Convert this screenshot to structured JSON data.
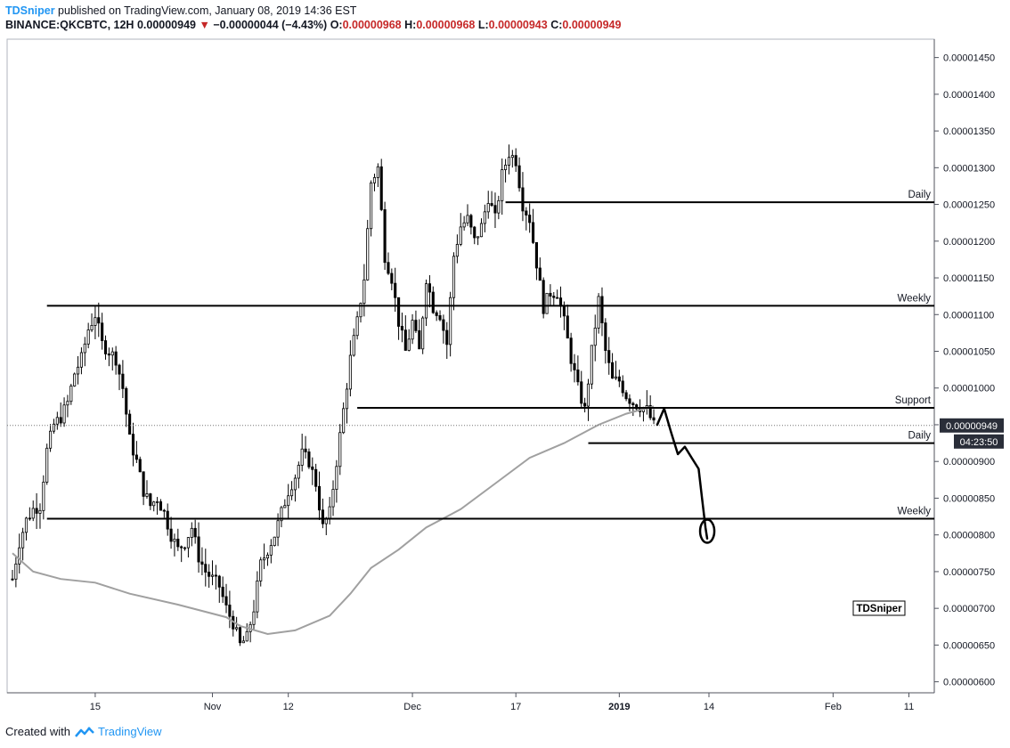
{
  "header": {
    "author": "TDSniper",
    "published_text": " published on TradingView.com, January 08, 2019 14:36 EST",
    "symbol": "BINANCE:QKCBTC, 12H",
    "last": "0.00000949",
    "change": "−0.00000044 (−4.43%)",
    "o_label": "O:",
    "o_value": "0.00000968",
    "h_label": "H:",
    "h_value": "0.00000968",
    "l_label": "L:",
    "l_value": "0.00000943",
    "c_label": "C:",
    "c_value": "0.00000949"
  },
  "footer": {
    "created_with": "Created with",
    "brand": "TradingView"
  },
  "colors": {
    "candle": "#000000",
    "ma": "#a0a0a0",
    "level": "#000000",
    "drawing": "#000000",
    "brand": "#2196f3",
    "down": "#c62828"
  },
  "chart_data": {
    "type": "candlestick",
    "timeframe": "12H",
    "y_unit": "BTC",
    "y_ticks": [
      "0.00001450",
      "0.00001400",
      "0.00001350",
      "0.00001300",
      "0.00001250",
      "0.00001200",
      "0.00001150",
      "0.00001100",
      "0.00001050",
      "0.00001000",
      "0.00000950",
      "0.00000900",
      "0.00000850",
      "0.00000800",
      "0.00000750",
      "0.00000700",
      "0.00000650",
      "0.00000600"
    ],
    "y_tick_values": [
      1450,
      1400,
      1350,
      1300,
      1250,
      1200,
      1150,
      1100,
      1050,
      1000,
      950,
      900,
      850,
      800,
      750,
      700,
      650,
      600
    ],
    "ylim": [
      585,
      1475
    ],
    "x_ticks": [
      {
        "label": "15",
        "bar": 24
      },
      {
        "label": "Nov",
        "bar": 58
      },
      {
        "label": "12",
        "bar": 80
      },
      {
        "label": "Dec",
        "bar": 116
      },
      {
        "label": "17",
        "bar": 146
      },
      {
        "label": "2019",
        "bar": 176,
        "bold": true
      },
      {
        "label": "14",
        "bar": 202
      },
      {
        "label": "Feb",
        "bar": 238
      },
      {
        "label": "11",
        "bar": 260
      }
    ],
    "current_price": {
      "label": "0.00000949",
      "value": 949
    },
    "countdown": "04:23:50",
    "levels": [
      {
        "label": "Daily",
        "value": 1253,
        "from_bar": 143
      },
      {
        "label": "Weekly",
        "value": 1112,
        "from_bar": 10
      },
      {
        "label": "Support",
        "value": 973,
        "from_bar": 100
      },
      {
        "label": "Daily",
        "value": 925,
        "from_bar": 167
      },
      {
        "label": "Weekly",
        "value": 822,
        "from_bar": 10
      }
    ],
    "watermark": "TDSniper",
    "close_path": [
      [
        0,
        740
      ],
      [
        2,
        790
      ],
      [
        4,
        820
      ],
      [
        6,
        835
      ],
      [
        8,
        840
      ],
      [
        10,
        915
      ],
      [
        12,
        950
      ],
      [
        14,
        960
      ],
      [
        16,
        980
      ],
      [
        18,
        1020
      ],
      [
        20,
        1040
      ],
      [
        22,
        1080
      ],
      [
        24,
        1100
      ],
      [
        26,
        1060
      ],
      [
        28,
        1050
      ],
      [
        30,
        1040
      ],
      [
        32,
        1000
      ],
      [
        34,
        930
      ],
      [
        36,
        900
      ],
      [
        38,
        860
      ],
      [
        40,
        840
      ],
      [
        42,
        850
      ],
      [
        44,
        830
      ],
      [
        46,
        800
      ],
      [
        48,
        780
      ],
      [
        50,
        790
      ],
      [
        52,
        810
      ],
      [
        54,
        770
      ],
      [
        56,
        750
      ],
      [
        58,
        740
      ],
      [
        60,
        730
      ],
      [
        62,
        700
      ],
      [
        64,
        680
      ],
      [
        66,
        650
      ],
      [
        68,
        660
      ],
      [
        70,
        700
      ],
      [
        72,
        760
      ],
      [
        74,
        780
      ],
      [
        76,
        800
      ],
      [
        78,
        830
      ],
      [
        80,
        860
      ],
      [
        82,
        880
      ],
      [
        84,
        910
      ],
      [
        86,
        900
      ],
      [
        88,
        870
      ],
      [
        90,
        810
      ],
      [
        92,
        830
      ],
      [
        94,
        900
      ],
      [
        96,
        970
      ],
      [
        98,
        1040
      ],
      [
        100,
        1090
      ],
      [
        102,
        1150
      ],
      [
        104,
        1280
      ],
      [
        106,
        1300
      ],
      [
        108,
        1180
      ],
      [
        110,
        1150
      ],
      [
        112,
        1090
      ],
      [
        114,
        1050
      ],
      [
        116,
        1090
      ],
      [
        118,
        1050
      ],
      [
        120,
        1150
      ],
      [
        122,
        1110
      ],
      [
        124,
        1100
      ],
      [
        126,
        1060
      ],
      [
        128,
        1180
      ],
      [
        130,
        1220
      ],
      [
        132,
        1230
      ],
      [
        134,
        1200
      ],
      [
        136,
        1220
      ],
      [
        138,
        1260
      ],
      [
        140,
        1230
      ],
      [
        142,
        1290
      ],
      [
        144,
        1320
      ],
      [
        146,
        1310
      ],
      [
        148,
        1250
      ],
      [
        150,
        1230
      ],
      [
        152,
        1170
      ],
      [
        154,
        1110
      ],
      [
        156,
        1130
      ],
      [
        158,
        1130
      ],
      [
        160,
        1090
      ],
      [
        162,
        1040
      ],
      [
        164,
        1000
      ],
      [
        166,
        970
      ],
      [
        168,
        1050
      ],
      [
        170,
        1120
      ],
      [
        172,
        1050
      ],
      [
        174,
        1010
      ],
      [
        176,
        1010
      ],
      [
        178,
        990
      ],
      [
        180,
        980
      ],
      [
        182,
        975
      ],
      [
        184,
        970
      ],
      [
        186,
        949
      ]
    ],
    "ma_path": [
      [
        0,
        775
      ],
      [
        6,
        750
      ],
      [
        14,
        740
      ],
      [
        24,
        735
      ],
      [
        34,
        720
      ],
      [
        48,
        705
      ],
      [
        62,
        688
      ],
      [
        66,
        676
      ],
      [
        74,
        665
      ],
      [
        82,
        670
      ],
      [
        92,
        690
      ],
      [
        98,
        720
      ],
      [
        104,
        755
      ],
      [
        112,
        780
      ],
      [
        120,
        810
      ],
      [
        130,
        835
      ],
      [
        140,
        870
      ],
      [
        150,
        905
      ],
      [
        160,
        925
      ],
      [
        170,
        950
      ],
      [
        178,
        965
      ],
      [
        186,
        975
      ]
    ],
    "forecast_drawing": [
      [
        187,
        950
      ],
      [
        189,
        972
      ],
      [
        191,
        940
      ],
      [
        193,
        910
      ],
      [
        195,
        920
      ],
      [
        197,
        905
      ],
      [
        199,
        890
      ],
      [
        200,
        850
      ],
      [
        201,
        810
      ],
      [
        201.5,
        795
      ]
    ]
  }
}
